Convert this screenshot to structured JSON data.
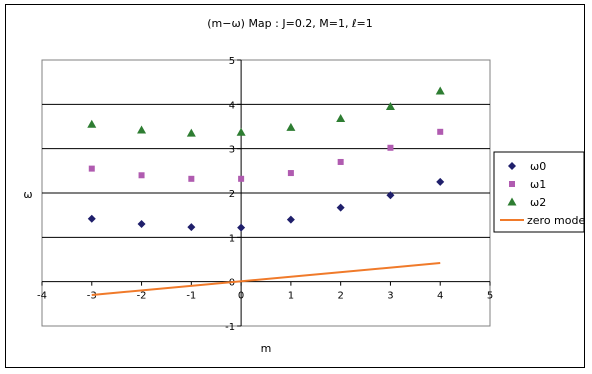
{
  "chart_data": {
    "type": "scatter",
    "title": "(m−ω) Map : J=0.2, M=1, ℓ=1",
    "xlabel": "m",
    "ylabel": "ω",
    "xlim": [
      -4,
      5
    ],
    "ylim": [
      -1,
      5
    ],
    "x_ticks": [
      "-4",
      "-3",
      "-2",
      "-1",
      "0",
      "1",
      "2",
      "3",
      "4",
      "5"
    ],
    "y_ticks": [
      "-1",
      "0",
      "1",
      "2",
      "3",
      "4",
      "5"
    ],
    "grid": "horizontal",
    "legend_position": "right",
    "series": [
      {
        "name": "ω0",
        "marker": "diamond",
        "color": "#1f1f6b",
        "x": [
          -3,
          -2,
          -1,
          0,
          1,
          2,
          3,
          4
        ],
        "y": [
          1.42,
          1.3,
          1.23,
          1.22,
          1.4,
          1.67,
          1.95,
          2.25
        ]
      },
      {
        "name": "ω1",
        "marker": "square",
        "color": "#b05bb0",
        "x": [
          -3,
          -2,
          -1,
          0,
          1,
          2,
          3,
          4
        ],
        "y": [
          2.55,
          2.4,
          2.32,
          2.32,
          2.45,
          2.7,
          3.02,
          3.38
        ]
      },
      {
        "name": "ω2",
        "marker": "triangle",
        "color": "#2e7d32",
        "x": [
          -3,
          -2,
          -1,
          0,
          1,
          2,
          3,
          4
        ],
        "y": [
          3.55,
          3.42,
          3.35,
          3.37,
          3.48,
          3.68,
          3.95,
          4.3
        ]
      },
      {
        "name": "zero mode",
        "marker": "line",
        "color": "#f07a2a",
        "x": [
          -3,
          4
        ],
        "y": [
          -0.3,
          0.42
        ]
      }
    ]
  }
}
